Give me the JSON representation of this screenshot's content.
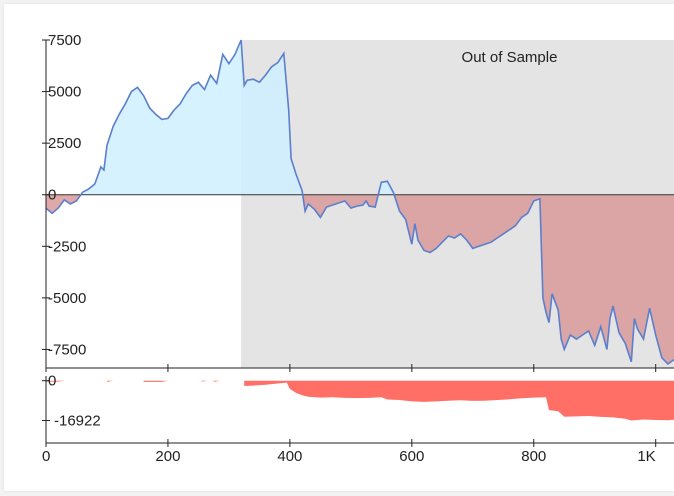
{
  "chart_data": [
    {
      "type": "area",
      "panel": "equity",
      "region_label": "Out of Sample",
      "xlim": [
        0,
        1030
      ],
      "ylim": [
        -8400,
        7500
      ],
      "yticks": [
        {
          "value": 7500,
          "label": "7500"
        },
        {
          "value": 5000,
          "label": "5000"
        },
        {
          "value": 2500,
          "label": "2500"
        },
        {
          "value": 0,
          "label": "0"
        },
        {
          "value": -2500,
          "label": "-2500"
        },
        {
          "value": -5000,
          "label": "-5000"
        },
        {
          "value": -7500,
          "label": "-7500"
        }
      ],
      "out_of_sample_start": 320,
      "series": [
        {
          "points": [
            [
              0,
              -650
            ],
            [
              10,
              -900
            ],
            [
              20,
              -650
            ],
            [
              30,
              -250
            ],
            [
              40,
              -450
            ],
            [
              50,
              -300
            ],
            [
              60,
              120
            ],
            [
              70,
              280
            ],
            [
              80,
              520
            ],
            [
              90,
              1350
            ],
            [
              95,
              1200
            ],
            [
              100,
              2400
            ],
            [
              110,
              3300
            ],
            [
              120,
              3900
            ],
            [
              130,
              4400
            ],
            [
              140,
              5000
            ],
            [
              150,
              5200
            ],
            [
              160,
              4800
            ],
            [
              170,
              4200
            ],
            [
              180,
              3900
            ],
            [
              190,
              3650
            ],
            [
              200,
              3700
            ],
            [
              210,
              4100
            ],
            [
              220,
              4400
            ],
            [
              230,
              4900
            ],
            [
              240,
              5300
            ],
            [
              250,
              5450
            ],
            [
              260,
              5100
            ],
            [
              270,
              5800
            ],
            [
              280,
              5400
            ],
            [
              290,
              6800
            ],
            [
              300,
              6350
            ],
            [
              310,
              6800
            ],
            [
              320,
              7500
            ],
            [
              325,
              5300
            ],
            [
              330,
              5550
            ],
            [
              340,
              5600
            ],
            [
              350,
              5450
            ],
            [
              360,
              5800
            ],
            [
              370,
              6200
            ],
            [
              380,
              6400
            ],
            [
              390,
              6850
            ],
            [
              398,
              4100
            ],
            [
              402,
              1750
            ],
            [
              410,
              1000
            ],
            [
              420,
              200
            ],
            [
              425,
              -800
            ],
            [
              430,
              -450
            ],
            [
              440,
              -700
            ],
            [
              450,
              -1100
            ],
            [
              460,
              -600
            ],
            [
              470,
              -500
            ],
            [
              480,
              -400
            ],
            [
              490,
              -300
            ],
            [
              500,
              -650
            ],
            [
              510,
              -550
            ],
            [
              520,
              -500
            ],
            [
              525,
              -300
            ],
            [
              530,
              -550
            ],
            [
              540,
              -600
            ],
            [
              550,
              600
            ],
            [
              560,
              650
            ],
            [
              570,
              100
            ],
            [
              580,
              -800
            ],
            [
              590,
              -1200
            ],
            [
              600,
              -2400
            ],
            [
              605,
              -1400
            ],
            [
              610,
              -2200
            ],
            [
              620,
              -2700
            ],
            [
              630,
              -2800
            ],
            [
              640,
              -2600
            ],
            [
              650,
              -2300
            ],
            [
              660,
              -2000
            ],
            [
              670,
              -2100
            ],
            [
              680,
              -1900
            ],
            [
              690,
              -2200
            ],
            [
              700,
              -2600
            ],
            [
              710,
              -2500
            ],
            [
              720,
              -2400
            ],
            [
              730,
              -2300
            ],
            [
              740,
              -2100
            ],
            [
              750,
              -1900
            ],
            [
              760,
              -1700
            ],
            [
              770,
              -1500
            ],
            [
              780,
              -1100
            ],
            [
              790,
              -900
            ],
            [
              800,
              -300
            ],
            [
              810,
              -200
            ],
            [
              815,
              -5000
            ],
            [
              820,
              -5700
            ],
            [
              825,
              -6200
            ],
            [
              830,
              -4800
            ],
            [
              840,
              -5600
            ],
            [
              845,
              -7000
            ],
            [
              850,
              -7500
            ],
            [
              860,
              -6800
            ],
            [
              870,
              -7000
            ],
            [
              880,
              -6800
            ],
            [
              890,
              -6600
            ],
            [
              900,
              -7300
            ],
            [
              910,
              -6400
            ],
            [
              920,
              -7500
            ],
            [
              925,
              -6000
            ],
            [
              930,
              -5400
            ],
            [
              940,
              -6700
            ],
            [
              950,
              -7200
            ],
            [
              960,
              -8100
            ],
            [
              965,
              -6000
            ],
            [
              970,
              -6500
            ],
            [
              980,
              -7000
            ],
            [
              990,
              -5500
            ],
            [
              1000,
              -6800
            ],
            [
              1010,
              -7900
            ],
            [
              1020,
              -8200
            ],
            [
              1030,
              -8000
            ]
          ]
        }
      ]
    },
    {
      "type": "area",
      "panel": "drawdown",
      "xlim": [
        0,
        1030
      ],
      "ylim": [
        -26500,
        2000
      ],
      "yticks": [
        {
          "value": 0,
          "label": "0"
        },
        {
          "value": -16922,
          "label": "-16922"
        }
      ],
      "xticks": [
        {
          "value": 0,
          "label": "0"
        },
        {
          "value": 200,
          "label": "200"
        },
        {
          "value": 400,
          "label": "400"
        },
        {
          "value": 600,
          "label": "600"
        },
        {
          "value": 800,
          "label": "800"
        },
        {
          "value": 1000,
          "label": "1K"
        }
      ],
      "series": [
        {
          "points": [
            [
              0,
              -400
            ],
            [
              20,
              -400
            ],
            [
              30,
              0
            ],
            [
              100,
              0
            ],
            [
              100,
              -500
            ],
            [
              110,
              0
            ],
            [
              160,
              0
            ],
            [
              160,
              -500
            ],
            [
              190,
              -500
            ],
            [
              200,
              0
            ],
            [
              255,
              0
            ],
            [
              255,
              -400
            ],
            [
              265,
              0
            ],
            [
              275,
              0
            ],
            [
              275,
              -500
            ],
            [
              285,
              0
            ],
            [
              325,
              0
            ],
            [
              325,
              -2200
            ],
            [
              340,
              -2100
            ],
            [
              360,
              -1700
            ],
            [
              380,
              -1200
            ],
            [
              395,
              -800
            ],
            [
              400,
              -3500
            ],
            [
              410,
              -5200
            ],
            [
              420,
              -6200
            ],
            [
              430,
              -6800
            ],
            [
              450,
              -7200
            ],
            [
              470,
              -7000
            ],
            [
              490,
              -7300
            ],
            [
              510,
              -7400
            ],
            [
              530,
              -7300
            ],
            [
              550,
              -7000
            ],
            [
              560,
              -8000
            ],
            [
              580,
              -8200
            ],
            [
              600,
              -8800
            ],
            [
              620,
              -9000
            ],
            [
              640,
              -8800
            ],
            [
              660,
              -8500
            ],
            [
              680,
              -8300
            ],
            [
              700,
              -8600
            ],
            [
              720,
              -8500
            ],
            [
              740,
              -8200
            ],
            [
              760,
              -7900
            ],
            [
              780,
              -7500
            ],
            [
              800,
              -7200
            ],
            [
              820,
              -7000
            ],
            [
              825,
              -12500
            ],
            [
              840,
              -13000
            ],
            [
              850,
              -15300
            ],
            [
              870,
              -15200
            ],
            [
              890,
              -15000
            ],
            [
              910,
              -15400
            ],
            [
              930,
              -15600
            ],
            [
              950,
              -16200
            ],
            [
              960,
              -16922
            ],
            [
              980,
              -16500
            ],
            [
              1000,
              -16700
            ],
            [
              1020,
              -16800
            ],
            [
              1030,
              -16600
            ]
          ]
        }
      ]
    }
  ],
  "colors": {
    "line": "#5b7fcc",
    "positive_fill": "#cfeeff",
    "negative_fill": "#d99a9a",
    "out_of_sample_bg": "#e4e4e4",
    "drawdown_fill": "#ff6f66"
  }
}
